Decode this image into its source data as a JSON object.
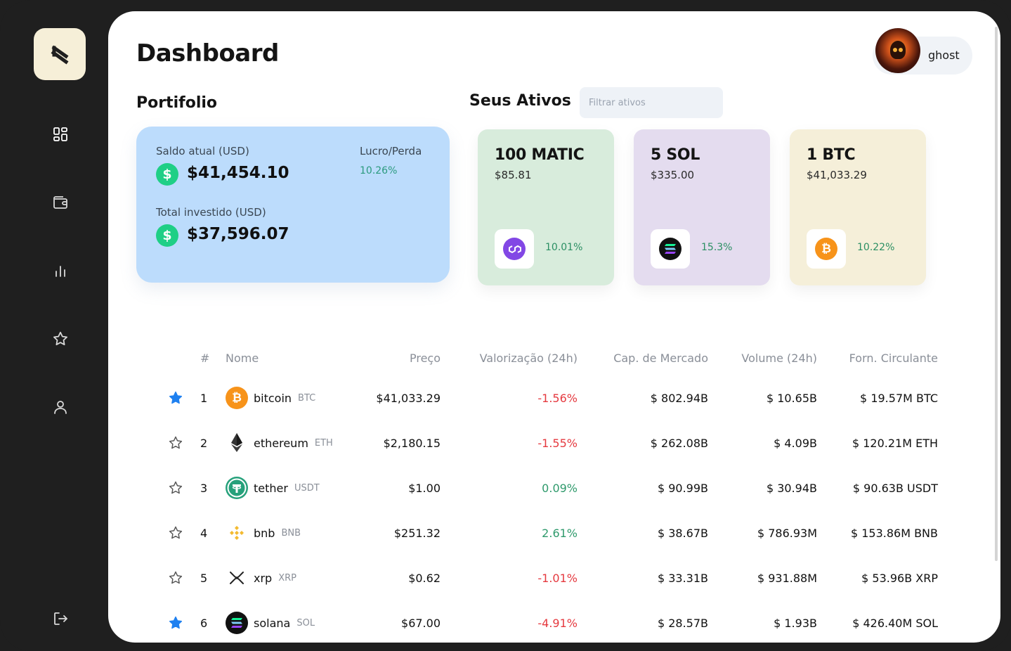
{
  "page_title": "Dashboard",
  "user": {
    "name": "ghost"
  },
  "portfolio": {
    "title": "Portifolio",
    "balance_label": "Saldo atual (USD)",
    "balance_value": "$41,454.10",
    "invested_label": "Total investido (USD)",
    "invested_value": "$37,596.07",
    "pl_label": "Lucro/Perda",
    "pl_value": "10.26%",
    "currency_symbol": "$"
  },
  "assets": {
    "title": "Seus Ativos",
    "filter_placeholder": "Filtrar ativos",
    "cards": [
      {
        "amount": "100 MATIC",
        "price": "$85.81",
        "change": "10.01%",
        "icon": "polygon-icon",
        "bg": "#d8ecdc"
      },
      {
        "amount": "5 SOL",
        "price": "$335.00",
        "change": "15.3%",
        "icon": "solana-icon",
        "bg": "#e4dcef"
      },
      {
        "amount": "1 BTC",
        "price": "$41,033.29",
        "change": "10.22%",
        "icon": "bitcoin-icon",
        "bg": "#f5efd9"
      }
    ]
  },
  "table": {
    "headers": {
      "rank": "#",
      "name": "Nome",
      "price": "Preço",
      "change": "Valorização (24h)",
      "market_cap": "Cap. de Mercado",
      "volume": "Volume (24h)",
      "supply": "Forn. Circulante"
    },
    "rows": [
      {
        "rank": "1",
        "name": "bitcoin",
        "symbol": "BTC",
        "price": "$41,033.29",
        "change": "-1.56%",
        "market_cap": "$ 802.94B",
        "volume": "$ 10.65B",
        "supply": "$ 19.57M BTC",
        "favorite": true,
        "icon": "bitcoin-icon"
      },
      {
        "rank": "2",
        "name": "ethereum",
        "symbol": "ETH",
        "price": "$2,180.15",
        "change": "-1.55%",
        "market_cap": "$ 262.08B",
        "volume": "$ 4.09B",
        "supply": "$ 120.21M ETH",
        "favorite": false,
        "icon": "ethereum-icon"
      },
      {
        "rank": "3",
        "name": "tether",
        "symbol": "USDT",
        "price": "$1.00",
        "change": "0.09%",
        "market_cap": "$ 90.99B",
        "volume": "$ 30.94B",
        "supply": "$ 90.63B USDT",
        "favorite": false,
        "icon": "tether-icon"
      },
      {
        "rank": "4",
        "name": "bnb",
        "symbol": "BNB",
        "price": "$251.32",
        "change": "2.61%",
        "market_cap": "$ 38.67B",
        "volume": "$ 786.93M",
        "supply": "$ 153.86M BNB",
        "favorite": false,
        "icon": "bnb-icon"
      },
      {
        "rank": "5",
        "name": "xrp",
        "symbol": "XRP",
        "price": "$0.62",
        "change": "-1.01%",
        "market_cap": "$ 33.31B",
        "volume": "$ 931.88M",
        "supply": "$ 53.96B XRP",
        "favorite": false,
        "icon": "xrp-icon"
      },
      {
        "rank": "6",
        "name": "solana",
        "symbol": "SOL",
        "price": "$67.00",
        "change": "-4.91%",
        "market_cap": "$ 28.57B",
        "volume": "$ 1.93B",
        "supply": "$ 426.40M SOL",
        "favorite": true,
        "icon": "solana-icon"
      }
    ]
  },
  "colors": {
    "negative": "#e5393f",
    "positive": "#2f9a6c",
    "favorite": "#1e80f0",
    "portfolio_bg": "#bcdcfc",
    "sidebar_bg": "#1f1f1f"
  }
}
